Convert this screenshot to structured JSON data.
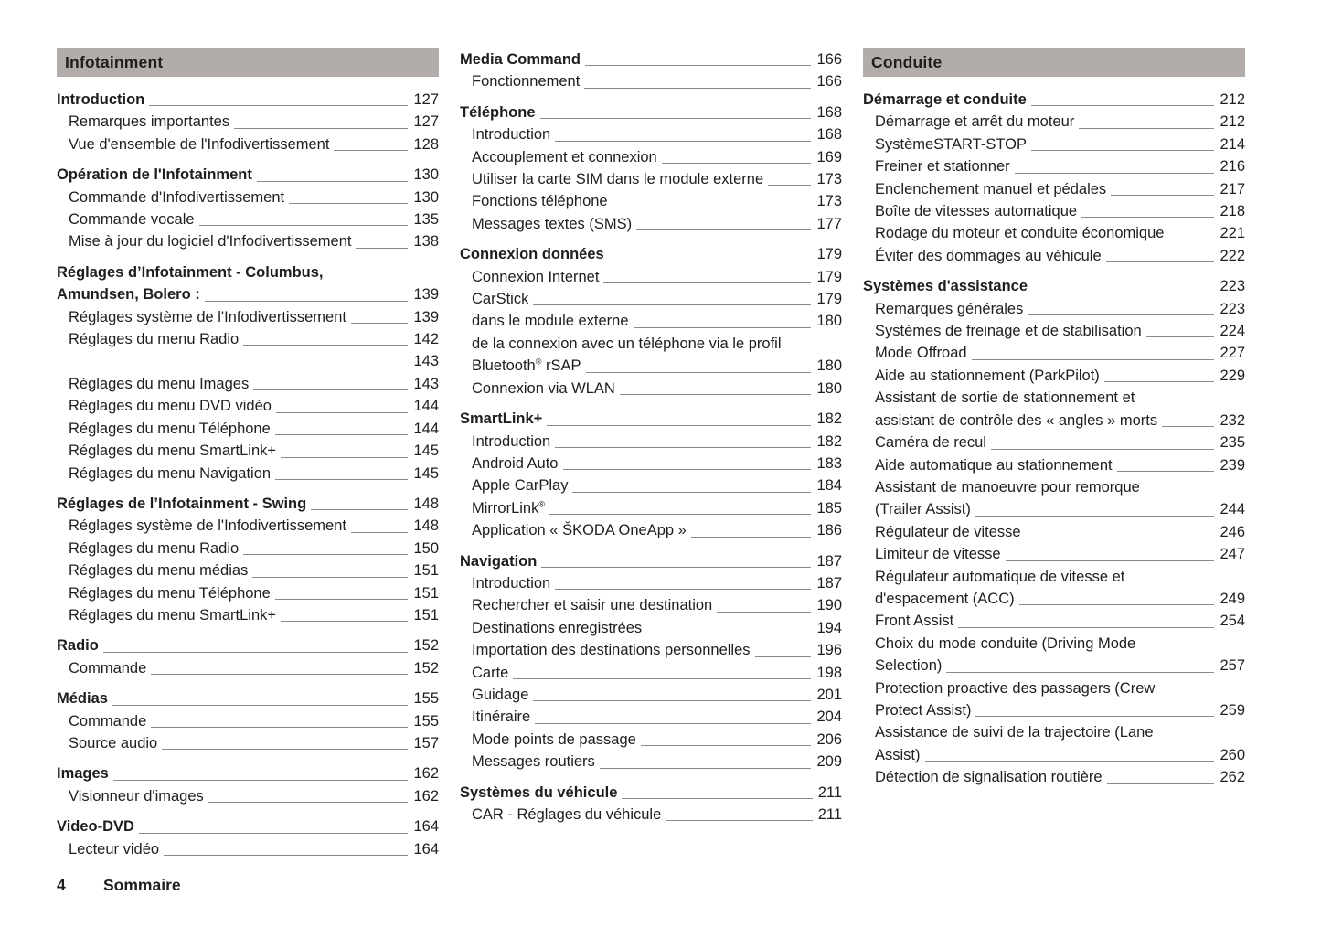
{
  "footer": {
    "page_number": "4",
    "label": "Sommaire"
  },
  "columns": [
    {
      "header": "Infotainment",
      "groups": [
        {
          "entries": [
            {
              "bold": true,
              "lines": [
                "Introduction"
              ],
              "page": "127"
            },
            {
              "lines": [
                "Remarques importantes"
              ],
              "page": "127"
            },
            {
              "lines": [
                "Vue d'ensemble de l'Infodivertissement"
              ],
              "page": "128"
            }
          ]
        },
        {
          "entries": [
            {
              "bold": true,
              "lines": [
                "Opération de l'Infotainment"
              ],
              "page": "130"
            },
            {
              "lines": [
                "Commande d'Infodivertissement"
              ],
              "page": "130"
            },
            {
              "lines": [
                "Commande vocale"
              ],
              "page": "135"
            },
            {
              "lines": [
                "Mise à jour du logiciel d'Infodivertissement"
              ],
              "page": "138"
            }
          ]
        },
        {
          "entries": [
            {
              "bold": true,
              "lines": [
                "Réglages d’Infotainment - Columbus,",
                "Amundsen, Bolero :"
              ],
              "page": "139"
            },
            {
              "lines": [
                "Réglages système de l'Infodivertissement"
              ],
              "page": "139"
            },
            {
              "lines": [
                "Réglages du menu Radio"
              ],
              "page": "142"
            },
            {
              "lines": [
                ""
              ],
              "page": "143"
            },
            {
              "lines": [
                "Réglages du menu Images"
              ],
              "page": "143"
            },
            {
              "lines": [
                "Réglages du menu DVD vidéo"
              ],
              "page": "144"
            },
            {
              "lines": [
                "Réglages du menu Téléphone"
              ],
              "page": "144"
            },
            {
              "lines": [
                "Réglages du menu SmartLink+"
              ],
              "page": "145"
            },
            {
              "lines": [
                "Réglages du menu Navigation"
              ],
              "page": "145"
            }
          ]
        },
        {
          "entries": [
            {
              "bold": true,
              "lines": [
                "Réglages de l’Infotainment - Swing"
              ],
              "page": "148"
            },
            {
              "lines": [
                "Réglages système de l'Infodivertissement"
              ],
              "page": "148"
            },
            {
              "lines": [
                "Réglages du menu Radio"
              ],
              "page": "150"
            },
            {
              "lines": [
                "Réglages du menu médias"
              ],
              "page": "151"
            },
            {
              "lines": [
                "Réglages du menu Téléphone"
              ],
              "page": "151"
            },
            {
              "lines": [
                "Réglages du menu SmartLink+"
              ],
              "page": "151"
            }
          ]
        },
        {
          "entries": [
            {
              "bold": true,
              "lines": [
                "Radio"
              ],
              "page": "152"
            },
            {
              "lines": [
                "Commande"
              ],
              "page": "152"
            }
          ]
        },
        {
          "entries": [
            {
              "bold": true,
              "lines": [
                "Médias"
              ],
              "page": "155"
            },
            {
              "lines": [
                "Commande"
              ],
              "page": "155"
            },
            {
              "lines": [
                "Source audio"
              ],
              "page": "157"
            }
          ]
        },
        {
          "entries": [
            {
              "bold": true,
              "lines": [
                "Images"
              ],
              "page": "162"
            },
            {
              "lines": [
                "Visionneur d'images"
              ],
              "page": "162"
            }
          ]
        },
        {
          "entries": [
            {
              "bold": true,
              "lines": [
                "Video-DVD"
              ],
              "page": "164"
            },
            {
              "lines": [
                "Lecteur vidéo"
              ],
              "page": "164"
            }
          ]
        }
      ]
    },
    {
      "header": null,
      "groups": [
        {
          "entries": [
            {
              "bold": true,
              "lines": [
                "Media Command"
              ],
              "page": "166"
            },
            {
              "lines": [
                "Fonctionnement"
              ],
              "page": "166"
            }
          ]
        },
        {
          "entries": [
            {
              "bold": true,
              "lines": [
                "Téléphone"
              ],
              "page": "168"
            },
            {
              "lines": [
                "Introduction"
              ],
              "page": "168"
            },
            {
              "lines": [
                "Accouplement et connexion"
              ],
              "page": "169"
            },
            {
              "lines": [
                "Utiliser la carte SIM dans le module externe"
              ],
              "page": "173"
            },
            {
              "lines": [
                "Fonctions téléphone"
              ],
              "page": "173"
            },
            {
              "lines": [
                "Messages textes (SMS)"
              ],
              "page": "177"
            }
          ]
        },
        {
          "entries": [
            {
              "bold": true,
              "lines": [
                "Connexion données"
              ],
              "page": "179"
            },
            {
              "lines": [
                "Connexion Internet"
              ],
              "page": "179"
            },
            {
              "lines": [
                "CarStick"
              ],
              "page": "179"
            },
            {
              "lines": [
                "dans le module externe"
              ],
              "page": "180"
            },
            {
              "lines": [
                "de la connexion avec un téléphone via le profil",
                "Bluetooth® rSAP"
              ],
              "page": "180"
            },
            {
              "lines": [
                "Connexion via WLAN"
              ],
              "page": "180"
            }
          ]
        },
        {
          "entries": [
            {
              "bold": true,
              "lines": [
                "SmartLink+"
              ],
              "page": "182"
            },
            {
              "lines": [
                "Introduction"
              ],
              "page": "182"
            },
            {
              "lines": [
                "Android Auto"
              ],
              "page": "183"
            },
            {
              "lines": [
                "Apple CarPlay"
              ],
              "page": "184"
            },
            {
              "lines": [
                "MirrorLink®"
              ],
              "page": "185"
            },
            {
              "lines": [
                "Application « ŠKODA OneApp »"
              ],
              "page": "186"
            }
          ]
        },
        {
          "entries": [
            {
              "bold": true,
              "lines": [
                "Navigation"
              ],
              "page": "187"
            },
            {
              "lines": [
                "Introduction"
              ],
              "page": "187"
            },
            {
              "lines": [
                "Rechercher et saisir une destination"
              ],
              "page": "190"
            },
            {
              "lines": [
                "Destinations enregistrées"
              ],
              "page": "194"
            },
            {
              "lines": [
                "Importation des destinations personnelles"
              ],
              "page": "196"
            },
            {
              "lines": [
                "Carte"
              ],
              "page": "198"
            },
            {
              "lines": [
                "Guidage"
              ],
              "page": "201"
            },
            {
              "lines": [
                "Itinéraire"
              ],
              "page": "204"
            },
            {
              "lines": [
                "Mode points de passage"
              ],
              "page": "206"
            },
            {
              "lines": [
                "Messages routiers"
              ],
              "page": "209"
            }
          ]
        },
        {
          "entries": [
            {
              "bold": true,
              "lines": [
                "Systèmes du véhicule"
              ],
              "page": "211"
            },
            {
              "lines": [
                "CAR - Réglages du véhicule"
              ],
              "page": "211"
            }
          ]
        }
      ]
    },
    {
      "header": "Conduite",
      "groups": [
        {
          "entries": [
            {
              "bold": true,
              "lines": [
                "Démarrage et conduite"
              ],
              "page": "212"
            },
            {
              "lines": [
                "Démarrage et arrêt du moteur"
              ],
              "page": "212"
            },
            {
              "lines": [
                "SystèmeSTART-STOP"
              ],
              "page": "214"
            },
            {
              "lines": [
                "Freiner et stationner"
              ],
              "page": "216"
            },
            {
              "lines": [
                "Enclenchement manuel et pédales"
              ],
              "page": "217"
            },
            {
              "lines": [
                "Boîte de vitesses automatique"
              ],
              "page": "218"
            },
            {
              "lines": [
                "Rodage du moteur et conduite économique"
              ],
              "page": "221"
            },
            {
              "lines": [
                "Éviter des dommages au véhicule"
              ],
              "page": "222"
            }
          ]
        },
        {
          "entries": [
            {
              "bold": true,
              "lines": [
                "Systèmes d'assistance"
              ],
              "page": "223"
            },
            {
              "lines": [
                "Remarques générales"
              ],
              "page": "223"
            },
            {
              "lines": [
                "Systèmes de freinage et de stabilisation"
              ],
              "page": "224"
            },
            {
              "lines": [
                "Mode Offroad"
              ],
              "page": "227"
            },
            {
              "lines": [
                "Aide au stationnement (ParkPilot)"
              ],
              "page": "229"
            },
            {
              "lines": [
                "Assistant de sortie de stationnement et",
                "assistant de contrôle des « angles » morts"
              ],
              "page": "232"
            },
            {
              "lines": [
                "Caméra de recul"
              ],
              "page": "235"
            },
            {
              "lines": [
                "Aide automatique au stationnement"
              ],
              "page": "239"
            },
            {
              "lines": [
                "Assistant de manoeuvre pour remorque",
                "(Trailer Assist)"
              ],
              "page": "244"
            },
            {
              "lines": [
                "Régulateur de vitesse"
              ],
              "page": "246"
            },
            {
              "lines": [
                "Limiteur de vitesse"
              ],
              "page": "247"
            },
            {
              "lines": [
                "Régulateur automatique de vitesse et",
                "d'espacement (ACC)"
              ],
              "page": "249"
            },
            {
              "lines": [
                "Front Assist"
              ],
              "page": "254"
            },
            {
              "lines": [
                "Choix du mode conduite (Driving Mode",
                "Selection)"
              ],
              "page": "257"
            },
            {
              "lines": [
                "Protection proactive des passagers (Crew",
                "Protect Assist)"
              ],
              "page": "259"
            },
            {
              "lines": [
                "Assistance de suivi de la trajectoire (Lane",
                "Assist)"
              ],
              "page": "260"
            },
            {
              "lines": [
                "Détection de signalisation routière"
              ],
              "page": "262"
            }
          ]
        }
      ]
    }
  ]
}
